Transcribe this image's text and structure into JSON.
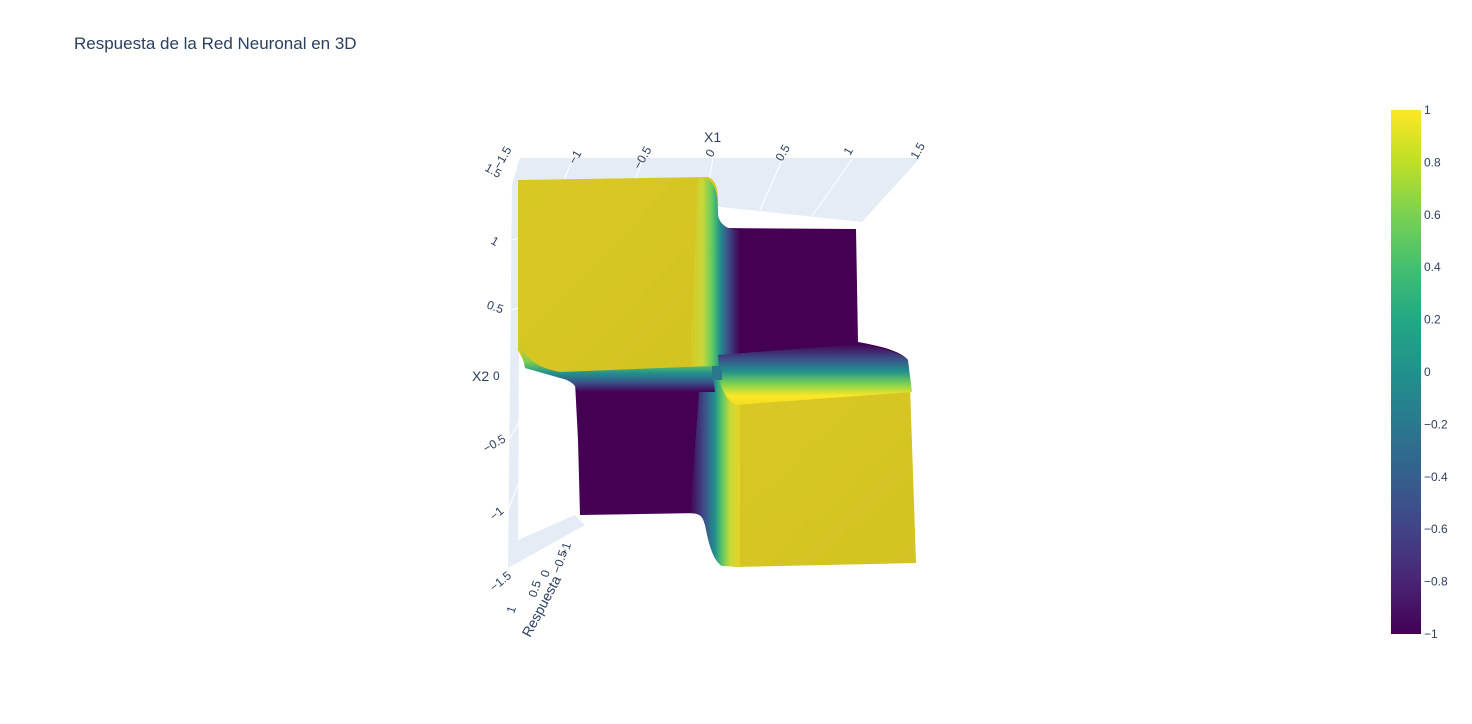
{
  "chart_data": {
    "type": "surface",
    "title": "Respuesta de la Red Neuronal en 3D",
    "colorscale": "Viridis",
    "colors": {
      "low": "#440154",
      "high": "#fde725",
      "plate_high": "#d7c623",
      "grid": "#e5ecf6"
    },
    "axes": {
      "x": {
        "title": "X1",
        "range": [
          -1.5,
          1.5
        ],
        "ticks": [
          "−1.5",
          "−1",
          "−0.5",
          "0",
          "0.5",
          "1",
          "1.5"
        ]
      },
      "y": {
        "title": "X2",
        "range": [
          -1.5,
          1.5
        ],
        "ticks": [
          "1.5",
          "1",
          "0.5",
          "0",
          "−0.5",
          "−1",
          "−1.5"
        ]
      },
      "z": {
        "title": "Respuesta",
        "range": [
          -1,
          1
        ],
        "ticks": [
          "−1",
          "−0.5",
          "0",
          "0.5",
          "1"
        ]
      }
    },
    "surface": {
      "function": "sign(X1) * sign(-X2) approximated by a steep tanh",
      "quadrants": [
        {
          "x_range": [
            -1.5,
            0
          ],
          "y_range": [
            0,
            1.5
          ],
          "z": 1
        },
        {
          "x_range": [
            0,
            1.5
          ],
          "y_range": [
            0,
            1.5
          ],
          "z": -1
        },
        {
          "x_range": [
            -1.5,
            0
          ],
          "y_range": [
            -1.5,
            0
          ],
          "z": -1
        },
        {
          "x_range": [
            0,
            1.5
          ],
          "y_range": [
            -1.5,
            0
          ],
          "z": 1
        }
      ]
    },
    "colorbar": {
      "min": -1,
      "max": 1,
      "ticks": [
        "1",
        "0.8",
        "0.6",
        "0.4",
        "0.2",
        "0",
        "−0.2",
        "−0.4",
        "−0.6",
        "−0.8",
        "−1"
      ]
    }
  }
}
